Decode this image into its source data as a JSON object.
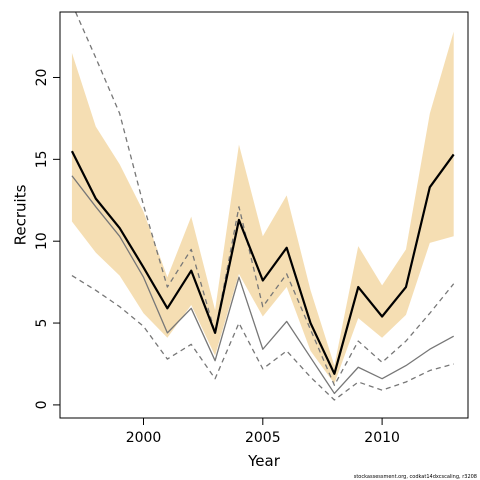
{
  "chart_data": {
    "type": "line",
    "xlabel": "Year",
    "ylabel": "Recruits",
    "xlim": [
      1996.5,
      2013.6
    ],
    "ylim": [
      -0.8,
      24
    ],
    "x_ticks": [
      2000,
      2005,
      2010
    ],
    "y_ticks": [
      0,
      5,
      10,
      15,
      20
    ],
    "x": [
      1997,
      1998,
      1999,
      2000,
      2001,
      2002,
      2003,
      2004,
      2005,
      2006,
      2007,
      2008,
      2009,
      2010,
      2011,
      2012,
      2013
    ],
    "band": {
      "upper": [
        21.5,
        17.0,
        14.7,
        11.8,
        7.8,
        11.5,
        5.8,
        15.9,
        10.3,
        12.8,
        7.0,
        2.4,
        9.7,
        7.3,
        9.5,
        17.8,
        22.8
      ],
      "lower": [
        11.2,
        9.3,
        7.9,
        5.6,
        4.1,
        6.1,
        3.0,
        8.0,
        5.4,
        7.2,
        3.3,
        1.3,
        5.3,
        4.1,
        5.5,
        9.9,
        10.3
      ],
      "color": "#f5deb3"
    },
    "series": [
      {
        "values": [
          15.5,
          12.6,
          10.8,
          8.4,
          5.9,
          8.2,
          4.4,
          11.3,
          7.6,
          9.6,
          5.0,
          1.9,
          7.2,
          5.4,
          7.2,
          13.3,
          15.3
        ],
        "color": "#000000",
        "style": "solid-thick"
      },
      {
        "values": [
          14.0,
          12.1,
          10.3,
          7.8,
          4.4,
          5.9,
          2.7,
          7.8,
          3.4,
          5.1,
          2.9,
          0.7,
          2.3,
          1.6,
          2.4,
          3.4,
          4.2
        ],
        "color": "#777777",
        "style": "solid"
      },
      {
        "values": [
          24.5,
          21.2,
          17.8,
          12.2,
          7.2,
          9.5,
          4.4,
          12.1,
          6.0,
          8.0,
          4.6,
          1.2,
          3.9,
          2.6,
          3.9,
          5.6,
          7.4
        ],
        "color": "#777777",
        "style": "dashed"
      },
      {
        "values": [
          7.9,
          7.0,
          6.0,
          4.8,
          2.8,
          3.7,
          1.6,
          5.0,
          2.2,
          3.3,
          1.7,
          0.3,
          1.4,
          0.9,
          1.4,
          2.1,
          2.5
        ],
        "color": "#777777",
        "style": "dashed"
      }
    ],
    "grid": false,
    "credit": "stockassessment.org, codkat14dxcscaling, r3208"
  }
}
